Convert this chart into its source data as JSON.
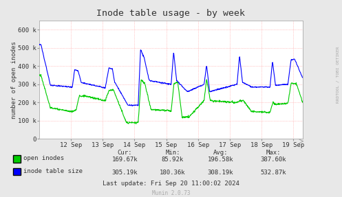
{
  "title": "Inode table usage - by week",
  "ylabel": "number of open inodes",
  "background_color": "#e8e8e8",
  "plot_bg_color": "#ffffff",
  "grid_color": "#ff9999",
  "x_tick_labels": [
    "12 Sep",
    "13 Sep",
    "14 Sep",
    "15 Sep",
    "16 Sep",
    "17 Sep",
    "18 Sep",
    "19 Sep"
  ],
  "y_ticks": [
    0,
    100000,
    200000,
    300000,
    400000,
    500000,
    600000
  ],
  "y_tick_labels": [
    "0",
    "100 k",
    "200 k",
    "300 k",
    "400 k",
    "500 k",
    "600 k"
  ],
  "ylim": [
    0,
    650000
  ],
  "xlim": [
    0,
    8.3
  ],
  "legend_colors": [
    "#00cc00",
    "#0000ff"
  ],
  "legend_labels": [
    "open inodes",
    "inode table size"
  ],
  "stats_header": [
    "Cur:",
    "Min:",
    "Avg:",
    "Max:"
  ],
  "stats_open_inodes": [
    "169.67k",
    "85.92k",
    "196.58k",
    "387.60k"
  ],
  "stats_inode_table": [
    "305.19k",
    "180.36k",
    "308.19k",
    "532.87k"
  ],
  "last_update": "Last update: Fri Sep 20 11:00:02 2024",
  "munin_version": "Munin 2.0.73",
  "watermark": "RRDTOOL / TOBI OETIKER",
  "green_color": "#00cc00",
  "blue_color": "#0000ff",
  "line_width": 0.8
}
